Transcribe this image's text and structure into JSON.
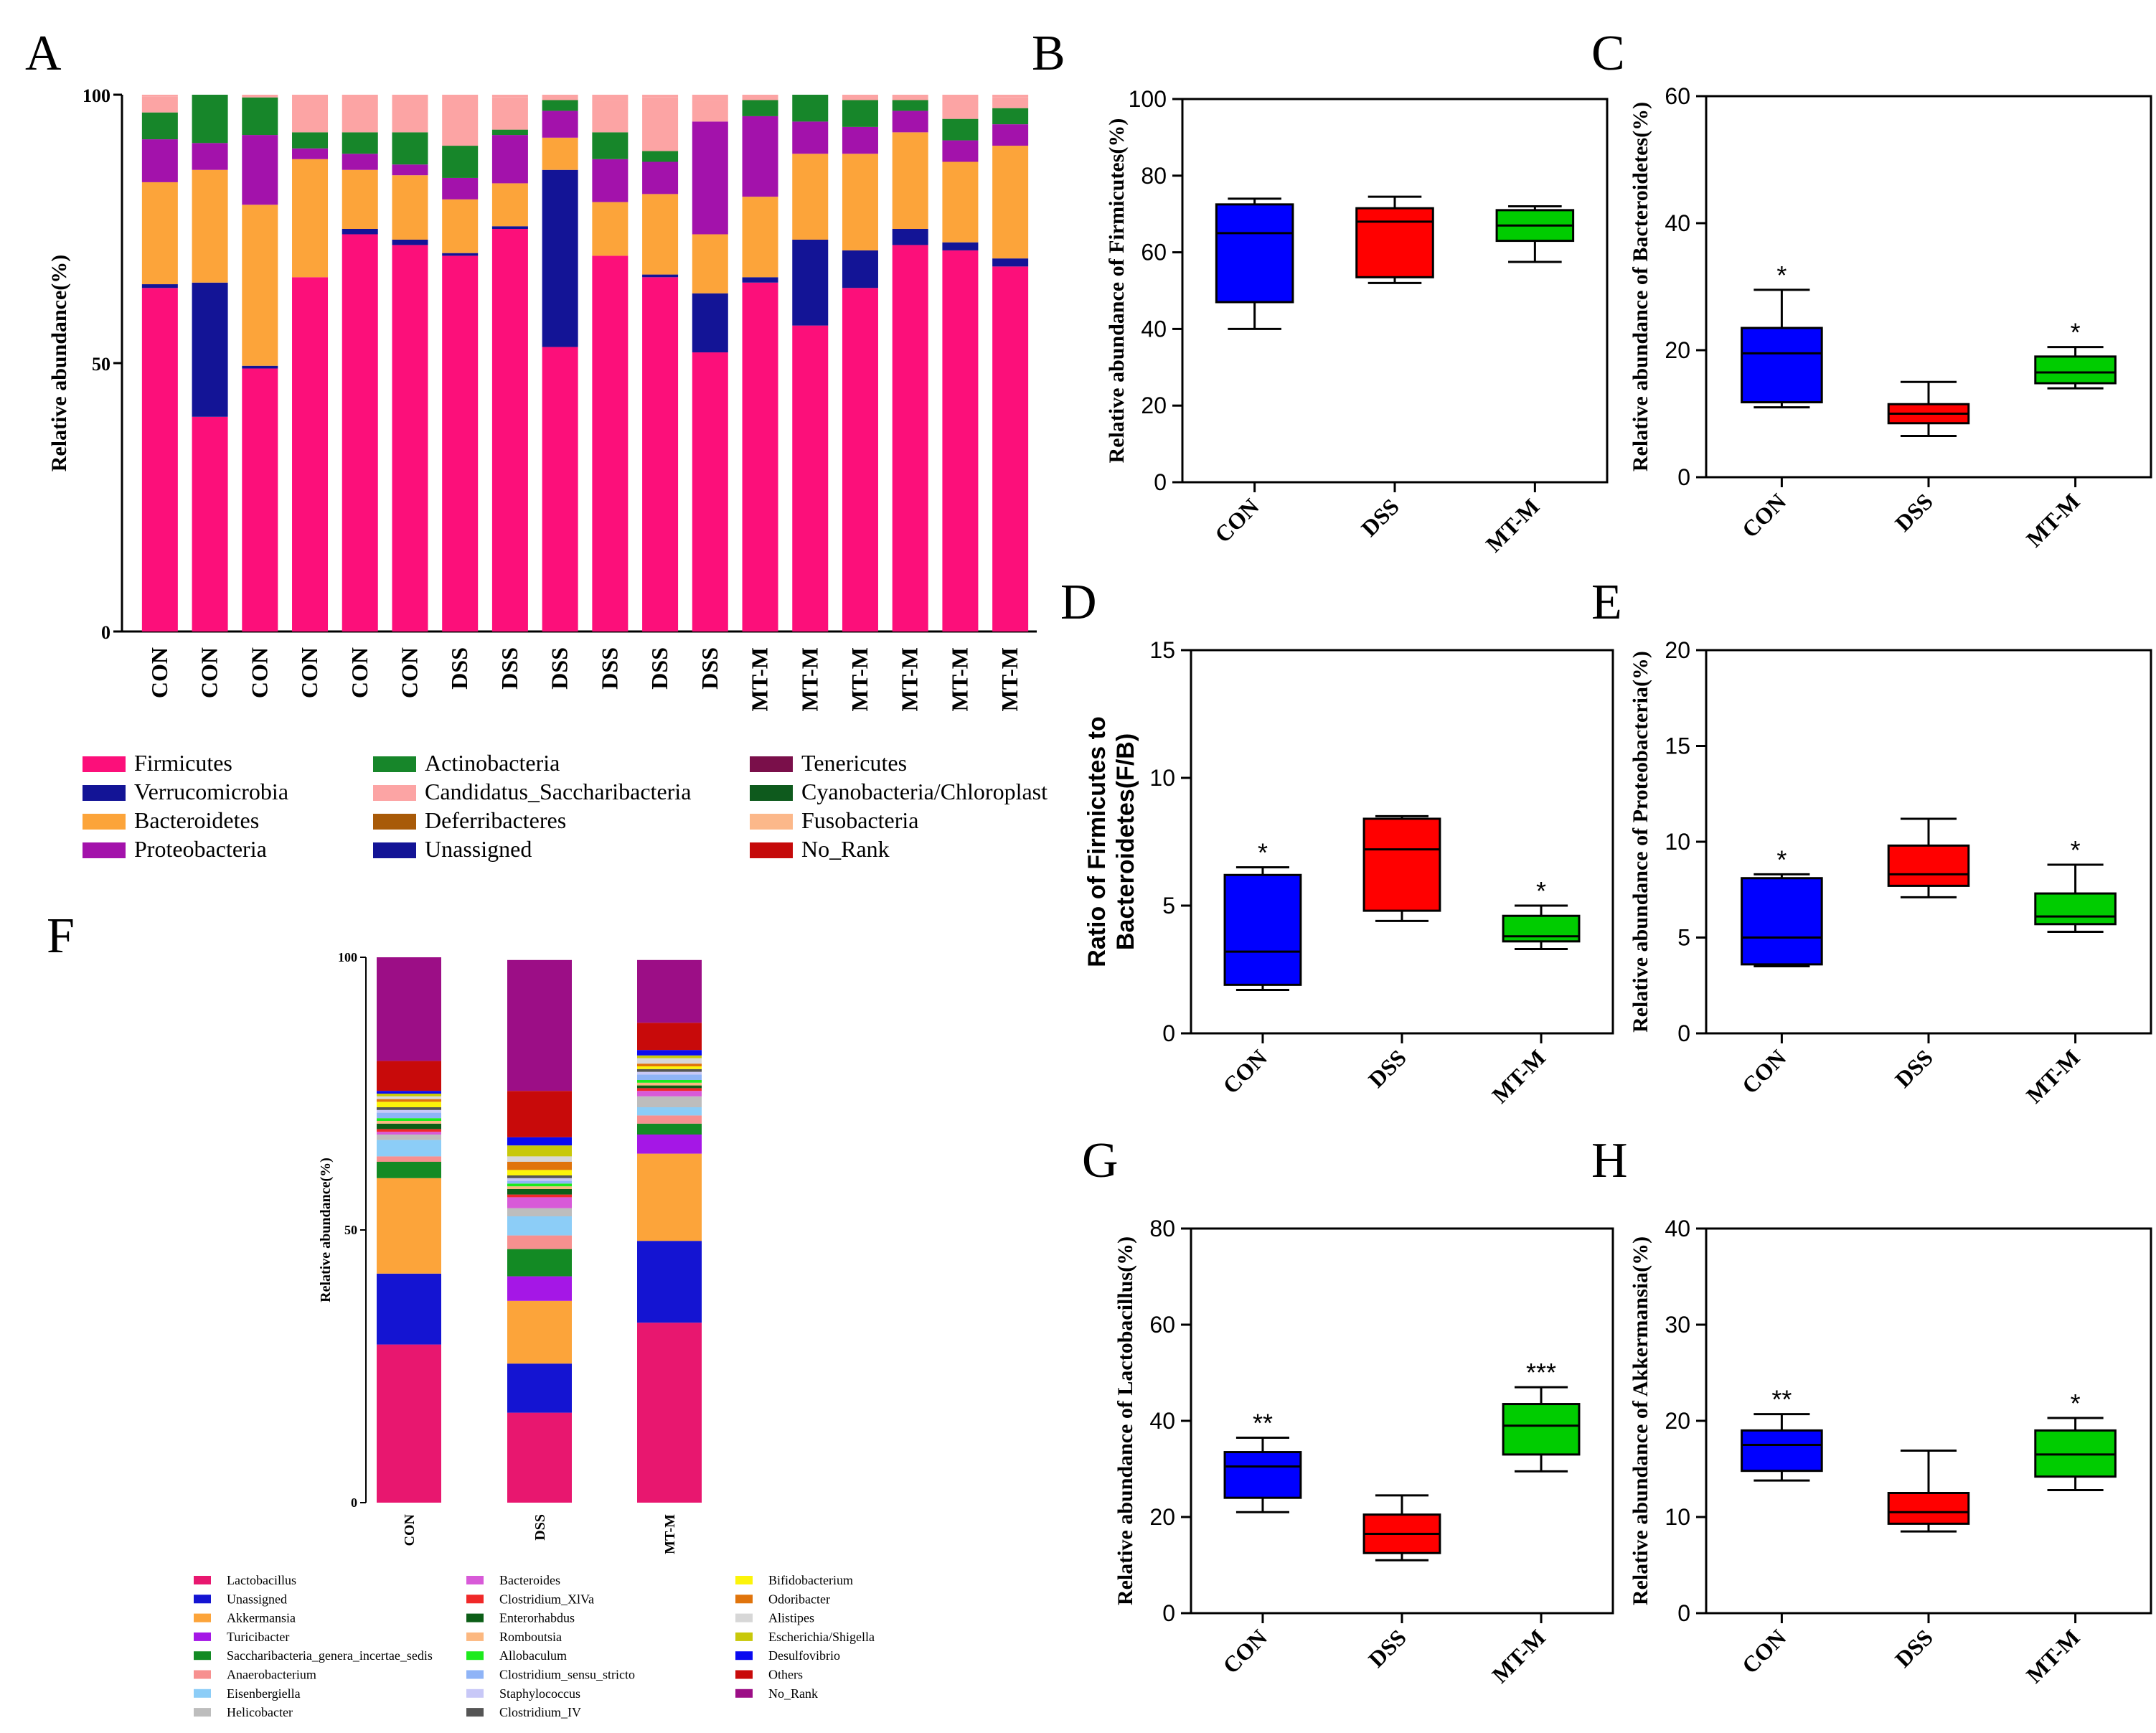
{
  "colors": {
    "Firmicutes": "#fc0f7a",
    "Verrucomicrobia": "#131496",
    "Bacteroidetes": "#fca43a",
    "Proteobacteria": "#a312ab",
    "Actinobacteria": "#17862a",
    "Candidatus_Saccharibacteria": "#fca4a4",
    "Deferribacteres": "#a85a08",
    "Unassigned": "#131496",
    "Tenericutes": "#7a0f4a",
    "Cyanobacteria/Chloroplast": "#0e5a1d",
    "Fusobacteria": "#fcb88a",
    "No_Rank": "#c50a0a",
    "Lactobacillus": "#e8176f",
    "Unassigned_g": "#1414d2",
    "Akkermansia": "#fca43a",
    "Turicibacter": "#a517e6",
    "Saccharibacteria_genera_incertae_sedis": "#138a24",
    "Anaerobacterium": "#f7908f",
    "Eisenbergiella": "#8ccdf7",
    "Helicobacter": "#bdbdbd",
    "Bacteroides": "#d85ad8",
    "Clostridium_XlVa": "#f02828",
    "Enterorhabdus": "#0c5e17",
    "Romboutsia": "#fcb880",
    "Allobaculum": "#1dea1d",
    "Clostridium_sensu_stricto": "#8fb4f7",
    "Staphylococcus": "#c8c8f7",
    "Clostridium_IV": "#555555",
    "Bifidobacterium": "#fcf40a",
    "Odoribacter": "#e0740c",
    "Alistipes": "#d7d7d7",
    "Escherichia/Shigella": "#c8c80a",
    "Desulfovibrio": "#0a0af0",
    "Others": "#c80a0a",
    "No_Rank_g": "#9c0e86",
    "CON": "#0000ff",
    "DSS": "#ff0000",
    "MT-M": "#00cc00"
  },
  "panels": {
    "A": "A",
    "B": "B",
    "C": "C",
    "D": "D",
    "E": "E",
    "F": "F",
    "G": "G",
    "H": "H"
  },
  "chart_data": [
    {
      "id": "A",
      "type": "bar",
      "stacked": true,
      "ylabel": "Relative abundance(%)",
      "yticks": [
        "0",
        "50",
        "100"
      ],
      "ylim": [
        0,
        100
      ],
      "categories": [
        "CON",
        "CON",
        "CON",
        "CON",
        "CON",
        "CON",
        "DSS",
        "DSS",
        "DSS",
        "DSS",
        "DSS",
        "DSS",
        "MT-M",
        "MT-M",
        "MT-M",
        "MT-M",
        "MT-M",
        "MT-M"
      ],
      "series": [
        {
          "name": "Firmicutes",
          "values": [
            64,
            40,
            49,
            66,
            74,
            72,
            70,
            75,
            53,
            70,
            66,
            52,
            65,
            57,
            64,
            72,
            71,
            68
          ]
        },
        {
          "name": "Unassigned",
          "values": [
            0.7,
            25,
            0.5,
            0,
            1,
            1,
            0.5,
            0.5,
            33,
            0,
            0.5,
            11,
            1,
            16,
            7,
            3,
            1.5,
            1.5
          ]
        },
        {
          "name": "Bacteroidetes",
          "values": [
            19,
            21,
            30,
            22,
            11,
            12,
            10,
            8,
            6,
            10,
            15,
            11,
            15,
            16,
            18,
            18,
            15,
            21
          ]
        },
        {
          "name": "Proteobacteria",
          "values": [
            8,
            5,
            13,
            2,
            3,
            2,
            4,
            9,
            5,
            8,
            6,
            21,
            15,
            6,
            5,
            4,
            4,
            4
          ]
        },
        {
          "name": "Actinobacteria",
          "values": [
            5,
            9,
            7,
            3,
            4,
            6,
            6,
            1,
            2,
            5,
            2,
            0,
            3,
            5,
            5,
            2,
            4,
            3
          ]
        },
        {
          "name": "Candidatus_Saccharibacteria",
          "values": [
            3,
            0,
            1,
            7,
            7,
            7,
            10,
            6,
            1,
            6,
            10,
            4,
            2,
            1,
            1,
            1,
            5,
            2
          ]
        }
      ]
    },
    {
      "id": "legendA",
      "type": "legend",
      "items": [
        "Firmicutes",
        "Verrucomicrobia",
        "Bacteroidetes",
        "Proteobacteria",
        "Actinobacteria",
        "Candidatus_Saccharibacteria",
        "Deferribacteres",
        "Unassigned",
        "Tenericutes",
        "Cyanobacteria/Chloroplast",
        "Fusobacteria",
        "No_Rank"
      ]
    },
    {
      "id": "B",
      "type": "box",
      "ylabel": "Relative abundance of Firmicutes(%)",
      "ylim": [
        0,
        100
      ],
      "yticks": [
        "0",
        "20",
        "40",
        "60",
        "80",
        "100"
      ],
      "categories": [
        "CON",
        "DSS",
        "MT-M"
      ],
      "boxes": [
        {
          "min": 40,
          "q1": 47,
          "median": 65,
          "q3": 72.5,
          "max": 74,
          "sig": ""
        },
        {
          "min": 52,
          "q1": 53.5,
          "median": 68,
          "q3": 71.5,
          "max": 74.5,
          "sig": ""
        },
        {
          "min": 57.5,
          "q1": 63,
          "median": 67,
          "q3": 71,
          "max": 72,
          "sig": ""
        }
      ]
    },
    {
      "id": "C",
      "type": "box",
      "ylabel": "Relative abundance of Bacteroidetes(%)",
      "ylim": [
        0,
        60
      ],
      "yticks": [
        "0",
        "20",
        "40",
        "60"
      ],
      "categories": [
        "CON",
        "DSS",
        "MT-M"
      ],
      "boxes": [
        {
          "min": 11,
          "q1": 11.8,
          "median": 19.5,
          "q3": 23.5,
          "max": 29.5,
          "sig": "*"
        },
        {
          "min": 6.5,
          "q1": 8.5,
          "median": 10,
          "q3": 11.5,
          "max": 15,
          "sig": ""
        },
        {
          "min": 14,
          "q1": 14.8,
          "median": 16.5,
          "q3": 19,
          "max": 20.5,
          "sig": "*"
        }
      ]
    },
    {
      "id": "D",
      "type": "box",
      "ylabel": "Ratio of Firmicutes to",
      "ylabel2": "Bacteroidetes(F/B)",
      "ylim": [
        0,
        15
      ],
      "yticks": [
        "0",
        "5",
        "10",
        "15"
      ],
      "categories": [
        "CON",
        "DSS",
        "MT-M"
      ],
      "boxes": [
        {
          "min": 1.7,
          "q1": 1.9,
          "median": 3.2,
          "q3": 6.2,
          "max": 6.5,
          "sig": "*"
        },
        {
          "min": 4.4,
          "q1": 4.8,
          "median": 7.2,
          "q3": 8.4,
          "max": 8.5,
          "sig": ""
        },
        {
          "min": 3.3,
          "q1": 3.6,
          "median": 3.8,
          "q3": 4.6,
          "max": 5.0,
          "sig": "*"
        }
      ]
    },
    {
      "id": "E",
      "type": "box",
      "ylabel": "Relative abundance of Proteobacteria(%)",
      "ylim": [
        0,
        20
      ],
      "yticks": [
        "0",
        "5",
        "10",
        "15",
        "20"
      ],
      "categories": [
        "CON",
        "DSS",
        "MT-M"
      ],
      "boxes": [
        {
          "min": 3.5,
          "q1": 3.6,
          "median": 5,
          "q3": 8.1,
          "max": 8.3,
          "sig": "*"
        },
        {
          "min": 7.1,
          "q1": 7.7,
          "median": 8.3,
          "q3": 9.8,
          "max": 11.2,
          "sig": ""
        },
        {
          "min": 5.3,
          "q1": 5.7,
          "median": 6.1,
          "q3": 7.3,
          "max": 8.8,
          "sig": "*"
        }
      ]
    },
    {
      "id": "F",
      "type": "bar",
      "stacked": true,
      "ylabel": "Relative abundance(%)",
      "yticks": [
        "0",
        "50",
        "100"
      ],
      "ylim": [
        0,
        100
      ],
      "categories": [
        "CON",
        "DSS",
        "MT-M"
      ],
      "series": [
        {
          "name": "Lactobacillus",
          "values": [
            29,
            16.5,
            33
          ]
        },
        {
          "name": "Unassigned_g",
          "values": [
            13,
            9,
            15
          ]
        },
        {
          "name": "Akkermansia",
          "values": [
            17.5,
            11.5,
            16
          ]
        },
        {
          "name": "Turicibacter",
          "values": [
            0,
            4.5,
            3.5
          ]
        },
        {
          "name": "Saccharibacteria_genera_incertae_sedis",
          "values": [
            3,
            5,
            2
          ]
        },
        {
          "name": "Anaerobacterium",
          "values": [
            1,
            2.5,
            1.5
          ]
        },
        {
          "name": "Eisenbergiella",
          "values": [
            3,
            3.5,
            1.5
          ]
        },
        {
          "name": "Helicobacter",
          "values": [
            1,
            1.5,
            2
          ]
        },
        {
          "name": "Bacteroides",
          "values": [
            0.5,
            2,
            1
          ]
        },
        {
          "name": "Clostridium_XlVa",
          "values": [
            0.5,
            0.5,
            0.5
          ]
        },
        {
          "name": "Enterorhabdus",
          "values": [
            1,
            1,
            0.5
          ]
        },
        {
          "name": "Romboutsia",
          "values": [
            0.5,
            0.5,
            0.5
          ]
        },
        {
          "name": "Allobaculum",
          "values": [
            0.5,
            0.5,
            0.5
          ]
        },
        {
          "name": "Clostridium_sensu_stricto",
          "values": [
            1,
            0.5,
            1
          ]
        },
        {
          "name": "Staphylococcus",
          "values": [
            0.5,
            0.5,
            0.5
          ]
        },
        {
          "name": "Clostridium_IV",
          "values": [
            0.5,
            0.5,
            0.5
          ]
        },
        {
          "name": "Bifidobacterium",
          "values": [
            1,
            1,
            0.5
          ]
        },
        {
          "name": "Odoribacter",
          "values": [
            0.5,
            1.5,
            0.5
          ]
        },
        {
          "name": "Alistipes",
          "values": [
            0.5,
            1,
            1
          ]
        },
        {
          "name": "Escherichia/Shigella",
          "values": [
            0.5,
            2,
            0.5
          ]
        },
        {
          "name": "Desulfovibrio",
          "values": [
            0.5,
            1.5,
            1
          ]
        },
        {
          "name": "Others",
          "values": [
            5.5,
            8.5,
            5
          ]
        },
        {
          "name": "No_Rank_g",
          "values": [
            20,
            24,
            11.5
          ]
        }
      ]
    },
    {
      "id": "legendF",
      "type": "legend",
      "items": [
        "Lactobacillus",
        "Unassigned",
        "Akkermansia",
        "Turicibacter",
        "Saccharibacteria_genera_incertae_sedis",
        "Anaerobacterium",
        "Eisenbergiella",
        "Helicobacter",
        "Bacteroides",
        "Clostridium_XlVa",
        "Enterorhabdus",
        "Romboutsia",
        "Allobaculum",
        "Clostridium_sensu_stricto",
        "Staphylococcus",
        "Clostridium_IV",
        "Bifidobacterium",
        "Odoribacter",
        "Alistipes",
        "Escherichia/Shigella",
        "Desulfovibrio",
        "Others",
        "No_Rank"
      ]
    },
    {
      "id": "G",
      "type": "box",
      "ylabel": "Relative abundance of Lactobacillus(%)",
      "ylim": [
        0,
        80
      ],
      "yticks": [
        "0",
        "20",
        "40",
        "60",
        "80"
      ],
      "categories": [
        "CON",
        "DSS",
        "MT-M"
      ],
      "boxes": [
        {
          "min": 21,
          "q1": 24,
          "median": 30.5,
          "q3": 33.5,
          "max": 36.5,
          "sig": "**"
        },
        {
          "min": 11,
          "q1": 12.5,
          "median": 16.5,
          "q3": 20.5,
          "max": 24.5,
          "sig": ""
        },
        {
          "min": 29.5,
          "q1": 33,
          "median": 39,
          "q3": 43.5,
          "max": 47,
          "sig": "***"
        }
      ]
    },
    {
      "id": "H",
      "type": "box",
      "ylabel": "Relative abundance of Akkermansia(%)",
      "ylim": [
        0,
        40
      ],
      "yticks": [
        "0",
        "10",
        "20",
        "30",
        "40"
      ],
      "categories": [
        "CON",
        "DSS",
        "MT-M"
      ],
      "boxes": [
        {
          "min": 13.8,
          "q1": 14.8,
          "median": 17.5,
          "q3": 19,
          "max": 20.7,
          "sig": "**"
        },
        {
          "min": 8.5,
          "q1": 9.3,
          "median": 10.5,
          "q3": 12.5,
          "max": 16.9,
          "sig": ""
        },
        {
          "min": 12.8,
          "q1": 14.2,
          "median": 16.5,
          "q3": 19,
          "max": 20.3,
          "sig": "*"
        }
      ]
    }
  ]
}
